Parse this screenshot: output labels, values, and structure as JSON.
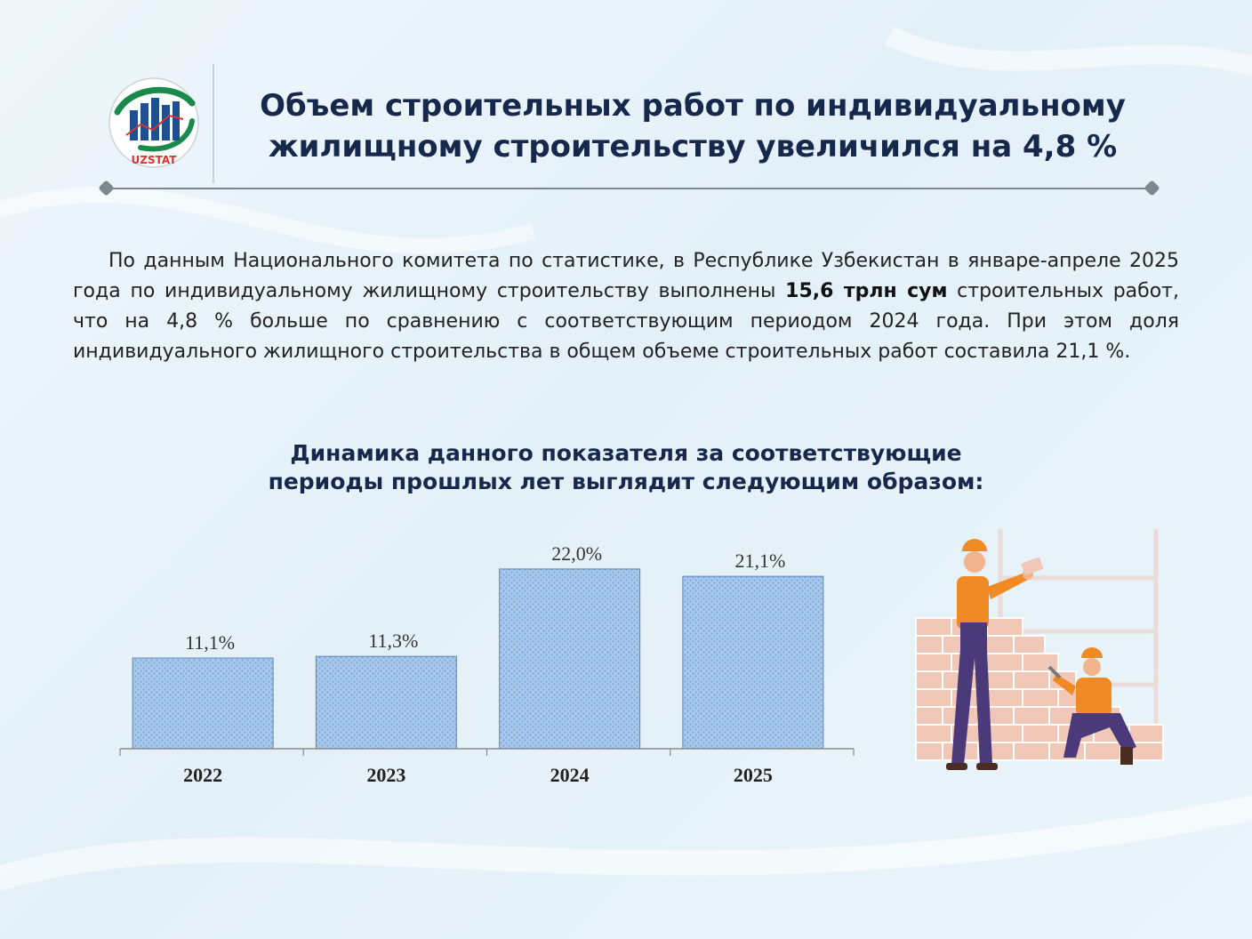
{
  "logo": {
    "text": "UZSTAT"
  },
  "header": {
    "title_line1": "Объем строительных работ по индивидуальному",
    "title_line2": "жилищному строительству увеличился на 4,8 %"
  },
  "body": {
    "part1": "По данным Национального комитета по статистике, в Республике Узбекистан в январе-апреле 2025 года по индивидуальному жилищному строительству выполнены ",
    "bold": "15,6 трлн сум",
    "part2": " строительных работ, что на 4,8 % больше по сравнению с соответствующим периодом 2024 года. При этом доля индивидуального жилищного строительства в общем объеме строительных работ составила 21,1 %."
  },
  "chart_heading": {
    "line1": "Динамика данного показателя за соответствующие",
    "line2": "периоды прошлых лет выглядит следующим образом:"
  },
  "chart_data": {
    "type": "bar",
    "title": "",
    "xlabel": "",
    "ylabel": "",
    "categories": [
      "2022",
      "2023",
      "2024",
      "2025"
    ],
    "values": [
      11.1,
      11.3,
      22.0,
      21.1
    ],
    "data_labels": [
      "11,1%",
      "11,3%",
      "22,0%",
      "21,1%"
    ],
    "ylim": [
      0,
      25
    ],
    "grid": false,
    "colors": {
      "bar": "#a9c9ec",
      "bar_dot": "#7aa6d8",
      "bar_stroke": "#5d86b8",
      "axis": "#8c8c8c"
    }
  },
  "colors": {
    "title": "#16294d",
    "accent_green": "#1a8a4a",
    "accent_blue": "#1d4f91"
  }
}
